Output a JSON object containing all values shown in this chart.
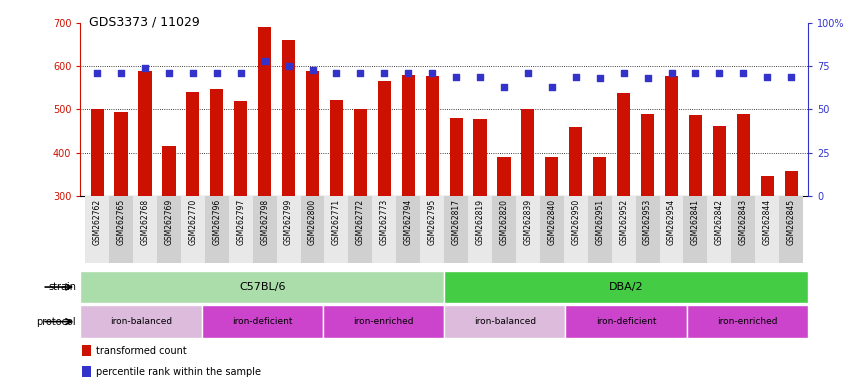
{
  "title": "GDS3373 / 11029",
  "samples": [
    "GSM262762",
    "GSM262765",
    "GSM262768",
    "GSM262769",
    "GSM262770",
    "GSM262796",
    "GSM262797",
    "GSM262798",
    "GSM262799",
    "GSM262800",
    "GSM262771",
    "GSM262772",
    "GSM262773",
    "GSM262794",
    "GSM262795",
    "GSM262817",
    "GSM262819",
    "GSM262820",
    "GSM262839",
    "GSM262840",
    "GSM262950",
    "GSM262951",
    "GSM262952",
    "GSM262953",
    "GSM262954",
    "GSM262841",
    "GSM262842",
    "GSM262843",
    "GSM262844",
    "GSM262845"
  ],
  "bar_values": [
    500,
    495,
    590,
    415,
    540,
    548,
    520,
    690,
    660,
    590,
    522,
    500,
    565,
    580,
    578,
    480,
    478,
    390,
    500,
    390,
    460,
    390,
    537,
    490,
    577,
    488,
    462,
    490,
    345,
    358
  ],
  "percentile_values": [
    71,
    71,
    74,
    71,
    71,
    71,
    71,
    78,
    75,
    73,
    71,
    71,
    71,
    71,
    71,
    69,
    69,
    63,
    71,
    63,
    69,
    68,
    71,
    68,
    71,
    71,
    71,
    71,
    69,
    69
  ],
  "bar_color": "#cc1100",
  "percentile_color": "#3333cc",
  "ylim_left": [
    300,
    700
  ],
  "ylim_right": [
    0,
    100
  ],
  "yticks_left": [
    300,
    400,
    500,
    600,
    700
  ],
  "yticks_right": [
    0,
    25,
    50,
    75,
    100
  ],
  "ytick_labels_right": [
    "0",
    "25",
    "50",
    "75",
    "100%"
  ],
  "grid_values": [
    400,
    500,
    600
  ],
  "strain_color_light": "#aaddaa",
  "strain_color_dark": "#44cc44",
  "prot_color_light": "#ddbbdd",
  "prot_color_dark": "#cc44cc",
  "strains": [
    {
      "label": "C57BL/6",
      "start": 0,
      "end": 15
    },
    {
      "label": "DBA/2",
      "start": 15,
      "end": 30
    }
  ],
  "protocols": [
    {
      "label": "iron-balanced",
      "start": 0,
      "end": 5,
      "light": true
    },
    {
      "label": "iron-deficient",
      "start": 5,
      "end": 10,
      "light": false
    },
    {
      "label": "iron-enriched",
      "start": 10,
      "end": 15,
      "light": false
    },
    {
      "label": "iron-balanced",
      "start": 15,
      "end": 20,
      "light": true
    },
    {
      "label": "iron-deficient",
      "start": 20,
      "end": 25,
      "light": false
    },
    {
      "label": "iron-enriched",
      "start": 25,
      "end": 30,
      "light": false
    }
  ],
  "legend_items": [
    {
      "label": "transformed count",
      "color": "#cc1100"
    },
    {
      "label": "percentile rank within the sample",
      "color": "#3333cc"
    }
  ],
  "background_color": "#ffffff",
  "xtick_col_light": "#e8e8e8",
  "xtick_col_dark": "#d0d0d0"
}
